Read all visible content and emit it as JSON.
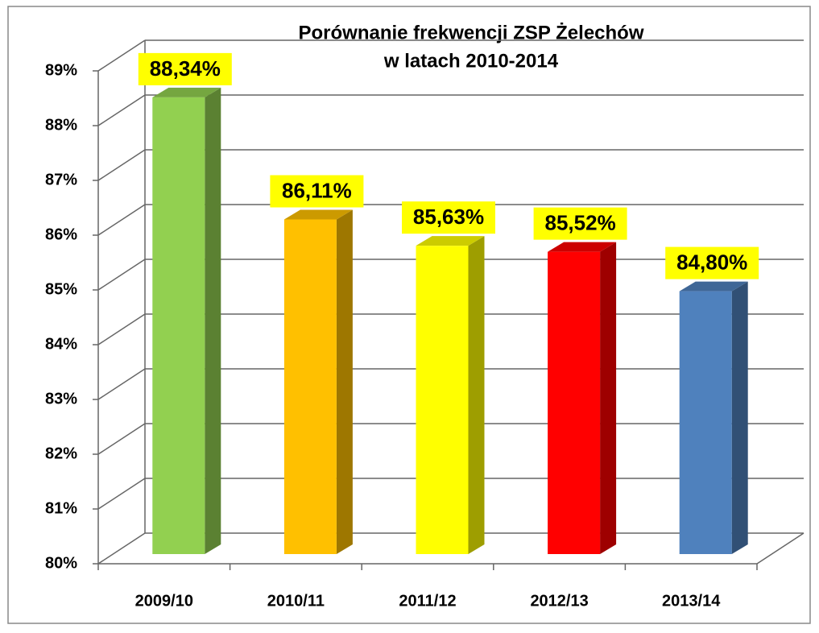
{
  "chart_data": {
    "type": "bar3d",
    "title": [
      "Porównanie frekwencji ZSP Żelechów",
      "w latach 2010-2014"
    ],
    "categories": [
      "2009/10",
      "2010/11",
      "2011/12",
      "2012/13",
      "2013/14"
    ],
    "values": [
      88.34,
      86.11,
      85.63,
      85.52,
      84.8
    ],
    "value_labels": [
      "88,34%",
      "86,11%",
      "85,63%",
      "85,52%",
      "84,80%"
    ],
    "colors": [
      "#92d050",
      "#ffc000",
      "#ffff00",
      "#ff0000",
      "#4f81bd"
    ],
    "ylim": [
      80,
      89
    ],
    "yticks": [
      {
        "value": 80,
        "label": "80%"
      },
      {
        "value": 81,
        "label": "81%"
      },
      {
        "value": 82,
        "label": "82%"
      },
      {
        "value": 83,
        "label": "83%"
      },
      {
        "value": 84,
        "label": "84%"
      },
      {
        "value": 85,
        "label": "85%"
      },
      {
        "value": 86,
        "label": "86%"
      },
      {
        "value": 87,
        "label": "87%"
      },
      {
        "value": 88,
        "label": "88%"
      },
      {
        "value": 89,
        "label": "89%"
      }
    ],
    "grid": true
  }
}
